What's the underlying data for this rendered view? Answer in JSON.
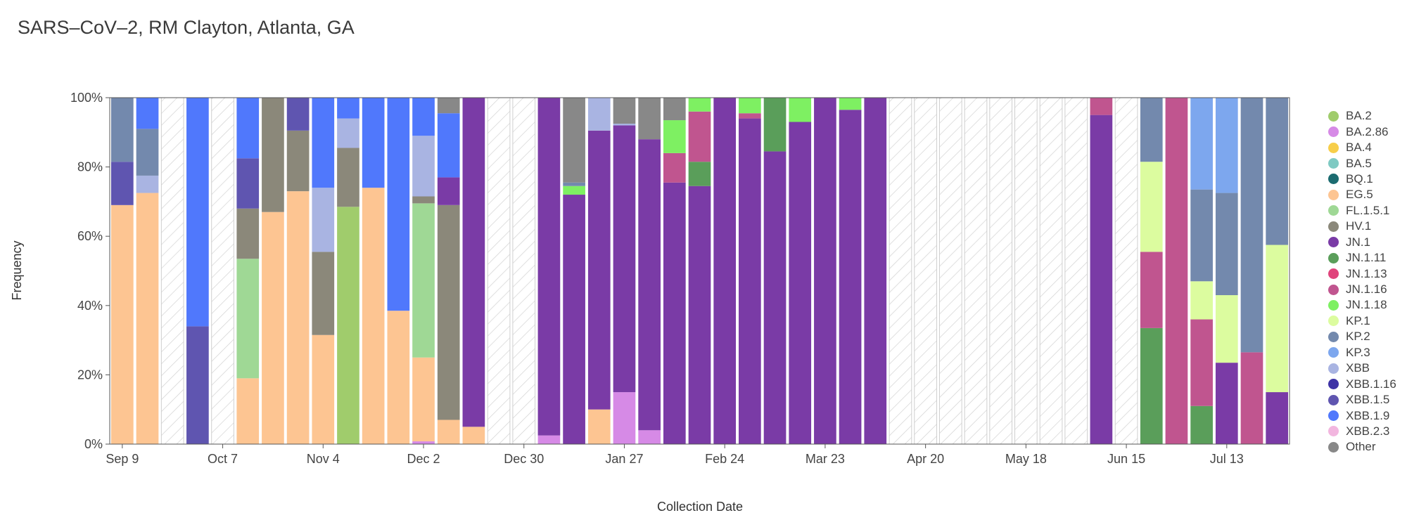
{
  "chart_data": {
    "type": "bar",
    "stacked": true,
    "title": "SARS–CoV–2, RM Clayton, Atlanta, GA",
    "xlabel": "Collection Date",
    "ylabel": "Frequency",
    "ylim": [
      0,
      100
    ],
    "yticks": [
      "0%",
      "20%",
      "40%",
      "60%",
      "80%",
      "100%"
    ],
    "xticks": [
      "Sep 9",
      "Oct 7",
      "Nov 4",
      "Dec 2",
      "Dec 30",
      "Jan 27",
      "Feb 24",
      "Mar 23",
      "Apr 20",
      "May 18",
      "Jun 15",
      "Jul 13"
    ],
    "legend_position": "right",
    "grid": false,
    "colors": {
      "BA.2": "#a0cc6c",
      "BA.2.86": "#d68ae6",
      "BA.4": "#f7ce4a",
      "BA.5": "#7fcac3",
      "BQ.1": "#1b6b70",
      "EG.5": "#fdc592",
      "FL.1.5.1": "#9fd895",
      "HV.1": "#8b887a",
      "JN.1": "#7a3ba6",
      "JN.1.11": "#5a9e5a",
      "JN.1.13": "#e0447c",
      "JN.1.16": "#c0558f",
      "JN.1.18": "#7ef062",
      "KP.1": "#dcfc9f",
      "KP.2": "#7389ad",
      "KP.3": "#7da7ee",
      "XBB": "#a9b4e2",
      "XBB.1.16": "#3e33a6",
      "XBB.1.5": "#5f55b0",
      "XBB.1.9": "#5078fc",
      "XBB.2.3": "#f2b6df",
      "Other": "#888888"
    },
    "legend": [
      "BA.2",
      "BA.2.86",
      "BA.4",
      "BA.5",
      "BQ.1",
      "EG.5",
      "FL.1.5.1",
      "HV.1",
      "JN.1",
      "JN.1.11",
      "JN.1.13",
      "JN.1.16",
      "JN.1.18",
      "KP.1",
      "KP.2",
      "KP.3",
      "XBB",
      "XBB.1.16",
      "XBB.1.5",
      "XBB.1.9",
      "XBB.2.3",
      "Other"
    ],
    "bars": [
      {
        "segments": [
          {
            "v": "EG.5",
            "p": 69
          },
          {
            "v": "XBB.1.5",
            "p": 12.5
          },
          {
            "v": "KP.2",
            "p": 18.5
          }
        ]
      },
      {
        "segments": [
          {
            "v": "EG.5",
            "p": 72.5
          },
          {
            "v": "XBB",
            "p": 5
          },
          {
            "v": "KP.2",
            "p": 13.5
          },
          {
            "v": "XBB.1.9",
            "p": 9
          }
        ]
      },
      {
        "missing": true
      },
      {
        "segments": [
          {
            "v": "XBB.1.5",
            "p": 34
          },
          {
            "v": "XBB.1.9",
            "p": 66
          }
        ]
      },
      {
        "missing": true
      },
      {
        "segments": [
          {
            "v": "EG.5",
            "p": 19
          },
          {
            "v": "FL.1.5.1",
            "p": 34.5
          },
          {
            "v": "HV.1",
            "p": 14.5
          },
          {
            "v": "XBB.1.5",
            "p": 14.5
          },
          {
            "v": "XBB.1.9",
            "p": 17.5
          }
        ]
      },
      {
        "segments": [
          {
            "v": "EG.5",
            "p": 67
          },
          {
            "v": "HV.1",
            "p": 33
          }
        ]
      },
      {
        "segments": [
          {
            "v": "EG.5",
            "p": 73
          },
          {
            "v": "HV.1",
            "p": 17.5
          },
          {
            "v": "XBB.1.5",
            "p": 9.5
          }
        ]
      },
      {
        "segments": [
          {
            "v": "EG.5",
            "p": 31.5
          },
          {
            "v": "HV.1",
            "p": 24
          },
          {
            "v": "XBB",
            "p": 18.5
          },
          {
            "v": "XBB.1.9",
            "p": 26
          }
        ]
      },
      {
        "segments": [
          {
            "v": "BA.2",
            "p": 68.5
          },
          {
            "v": "HV.1",
            "p": 17
          },
          {
            "v": "XBB",
            "p": 8.5
          },
          {
            "v": "XBB.1.9",
            "p": 6
          }
        ]
      },
      {
        "segments": [
          {
            "v": "EG.5",
            "p": 74
          },
          {
            "v": "XBB.1.9",
            "p": 26
          }
        ]
      },
      {
        "segments": [
          {
            "v": "EG.5",
            "p": 38.5
          },
          {
            "v": "XBB.1.9",
            "p": 61.5
          }
        ]
      },
      {
        "segments": [
          {
            "v": "BA.2.86",
            "p": 0.8
          },
          {
            "v": "EG.5",
            "p": 24.2
          },
          {
            "v": "FL.1.5.1",
            "p": 44.5
          },
          {
            "v": "HV.1",
            "p": 2
          },
          {
            "v": "XBB",
            "p": 17.5
          },
          {
            "v": "XBB.1.9",
            "p": 11
          }
        ]
      },
      {
        "segments": [
          {
            "v": "EG.5",
            "p": 7
          },
          {
            "v": "HV.1",
            "p": 62
          },
          {
            "v": "JN.1",
            "p": 8
          },
          {
            "v": "XBB.1.9",
            "p": 18.5
          },
          {
            "v": "Other",
            "p": 4.5
          }
        ]
      },
      {
        "segments": [
          {
            "v": "EG.5",
            "p": 5
          },
          {
            "v": "JN.1",
            "p": 95
          }
        ]
      },
      {
        "missing": true
      },
      {
        "missing": true
      },
      {
        "segments": [
          {
            "v": "BA.2.86",
            "p": 2.5
          },
          {
            "v": "JN.1",
            "p": 97.5
          }
        ]
      },
      {
        "segments": [
          {
            "v": "JN.1",
            "p": 72
          },
          {
            "v": "JN.1.18",
            "p": 2.5
          },
          {
            "v": "KP.2",
            "p": 1
          },
          {
            "v": "Other",
            "p": 24.5
          }
        ]
      },
      {
        "segments": [
          {
            "v": "EG.5",
            "p": 10
          },
          {
            "v": "JN.1",
            "p": 80.5
          },
          {
            "v": "XBB",
            "p": 9.5
          }
        ]
      },
      {
        "segments": [
          {
            "v": "BA.2.86",
            "p": 15
          },
          {
            "v": "JN.1",
            "p": 77
          },
          {
            "v": "XBB",
            "p": 0.5
          },
          {
            "v": "Other",
            "p": 7.5
          }
        ]
      },
      {
        "segments": [
          {
            "v": "BA.2.86",
            "p": 4
          },
          {
            "v": "JN.1",
            "p": 84
          },
          {
            "v": "Other",
            "p": 12
          }
        ]
      },
      {
        "segments": [
          {
            "v": "JN.1",
            "p": 75.5
          },
          {
            "v": "JN.1.16",
            "p": 8.5
          },
          {
            "v": "JN.1.18",
            "p": 9.5
          },
          {
            "v": "Other",
            "p": 6.5
          }
        ]
      },
      {
        "segments": [
          {
            "v": "JN.1",
            "p": 74.5
          },
          {
            "v": "JN.1.11",
            "p": 7
          },
          {
            "v": "JN.1.16",
            "p": 14.5
          },
          {
            "v": "JN.1.18",
            "p": 4
          }
        ]
      },
      {
        "segments": [
          {
            "v": "JN.1",
            "p": 100
          }
        ]
      },
      {
        "segments": [
          {
            "v": "JN.1",
            "p": 94
          },
          {
            "v": "JN.1.16",
            "p": 1.5
          },
          {
            "v": "JN.1.18",
            "p": 4.5
          }
        ]
      },
      {
        "segments": [
          {
            "v": "JN.1",
            "p": 84.5
          },
          {
            "v": "JN.1.11",
            "p": 15.5
          }
        ]
      },
      {
        "segments": [
          {
            "v": "JN.1",
            "p": 93
          },
          {
            "v": "JN.1.18",
            "p": 7
          }
        ]
      },
      {
        "segments": [
          {
            "v": "JN.1",
            "p": 100
          }
        ]
      },
      {
        "segments": [
          {
            "v": "JN.1",
            "p": 96.5
          },
          {
            "v": "JN.1.18",
            "p": 3.5
          }
        ]
      },
      {
        "segments": [
          {
            "v": "JN.1",
            "p": 100
          }
        ]
      },
      {
        "missing": true
      },
      {
        "missing": true
      },
      {
        "missing": true
      },
      {
        "missing": true
      },
      {
        "missing": true
      },
      {
        "missing": true
      },
      {
        "missing": true
      },
      {
        "missing": true
      },
      {
        "segments": [
          {
            "v": "JN.1",
            "p": 95
          },
          {
            "v": "JN.1.16",
            "p": 5
          }
        ]
      },
      {
        "missing": true
      },
      {
        "segments": [
          {
            "v": "JN.1.11",
            "p": 33.5
          },
          {
            "v": "JN.1.16",
            "p": 22
          },
          {
            "v": "KP.1",
            "p": 26
          },
          {
            "v": "KP.2",
            "p": 18.5
          }
        ]
      },
      {
        "segments": [
          {
            "v": "JN.1.16",
            "p": 100
          }
        ]
      },
      {
        "segments": [
          {
            "v": "JN.1.11",
            "p": 11
          },
          {
            "v": "JN.1.16",
            "p": 25
          },
          {
            "v": "KP.1",
            "p": 11
          },
          {
            "v": "KP.2",
            "p": 26.5
          },
          {
            "v": "KP.3",
            "p": 26.5
          }
        ]
      },
      {
        "segments": [
          {
            "v": "JN.1",
            "p": 23.5
          },
          {
            "v": "KP.1",
            "p": 19.5
          },
          {
            "v": "KP.2",
            "p": 29.5
          },
          {
            "v": "KP.3",
            "p": 27.5
          }
        ]
      },
      {
        "segments": [
          {
            "v": "JN.1.16",
            "p": 26.5
          },
          {
            "v": "KP.2",
            "p": 73.5
          }
        ]
      },
      {
        "segments": [
          {
            "v": "JN.1",
            "p": 15
          },
          {
            "v": "KP.1",
            "p": 42.5
          },
          {
            "v": "KP.2",
            "p": 42.5
          }
        ]
      }
    ]
  }
}
